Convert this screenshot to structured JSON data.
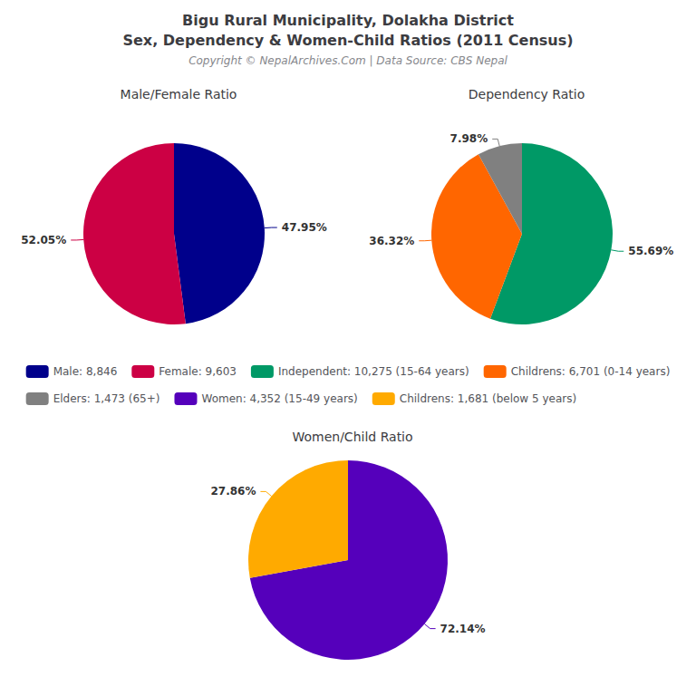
{
  "title": [
    "Bigu Rural Municipality, Dolakha District",
    "Sex, Dependency & Women-Child Ratios (2011 Census)"
  ],
  "subtitle": "Copyright © NepalArchives.Com | Data Source: CBS Nepal",
  "legend": "center",
  "chart_data": [
    {
      "type": "pie",
      "title": "Male/Female Ratio",
      "categories": [
        "Male: 8,846",
        "Female: 9,603"
      ],
      "values": [
        47.95,
        52.05
      ],
      "value_labels": [
        "47.95%",
        "52.05%"
      ],
      "colors": [
        "#00008B",
        "#CC0044"
      ],
      "data_labels": true
    },
    {
      "type": "pie",
      "title": "Dependency Ratio",
      "categories": [
        "Independent: 10,275 (15-64 years)",
        "Childrens: 6,701 (0-14 years)",
        "Elders: 1,473 (65+)"
      ],
      "values": [
        55.69,
        36.32,
        7.98
      ],
      "value_labels": [
        "55.69%",
        "36.32%",
        "7.98%"
      ],
      "colors": [
        "#009966",
        "#FF6600",
        "#808080"
      ],
      "data_labels": true
    },
    {
      "type": "pie",
      "title": "Women/Child Ratio",
      "categories": [
        "Women: 4,352 (15-49 years)",
        "Childrens: 1,681 (below 5 years)"
      ],
      "values": [
        72.14,
        27.86
      ],
      "value_labels": [
        "72.14%",
        "27.86%"
      ],
      "colors": [
        "#5500BB",
        "#FFAA00"
      ],
      "data_labels": true
    }
  ]
}
